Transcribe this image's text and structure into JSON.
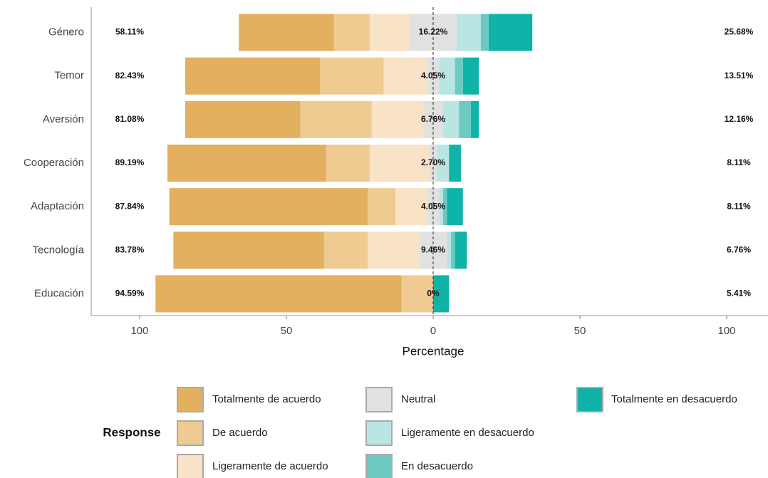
{
  "chart_data": {
    "type": "diverging_bar",
    "categories": [
      "Género",
      "Temor",
      "Aversión",
      "Cooperación",
      "Adaptación",
      "Tecnología",
      "Educación"
    ],
    "series": [
      {
        "name": "Totalmente de acuerdo",
        "color": "#e3b060",
        "side": "left",
        "values": [
          32.43,
          45.95,
          39.19,
          54.05,
          67.57,
          51.35,
          83.78
        ]
      },
      {
        "name": "De acuerdo",
        "color": "#efcb92",
        "side": "left",
        "values": [
          12.16,
          21.62,
          24.32,
          14.86,
          9.46,
          14.86,
          10.81
        ]
      },
      {
        "name": "Ligeramente de acuerdo",
        "color": "#f9e3c6",
        "side": "left",
        "values": [
          13.51,
          14.86,
          17.57,
          20.27,
          10.81,
          17.57,
          0
        ]
      },
      {
        "name": "Neutral",
        "color": "#e1e1e1",
        "side": "center",
        "values": [
          16.22,
          4.05,
          6.76,
          2.7,
          4.05,
          9.46,
          0
        ]
      },
      {
        "name": "Ligeramente en desacuerdo",
        "color": "#b9e5e2",
        "side": "right",
        "values": [
          8.11,
          5.41,
          5.41,
          4.05,
          1.35,
          1.35,
          0
        ]
      },
      {
        "name": "En desacuerdo",
        "color": "#6ccac3",
        "side": "right",
        "values": [
          2.7,
          2.7,
          4.05,
          0,
          1.35,
          1.35,
          0
        ]
      },
      {
        "name": "Totalmente en desacuerdo",
        "color": "#10b3a8",
        "side": "right",
        "values": [
          14.86,
          5.41,
          2.7,
          4.05,
          5.41,
          4.05,
          5.41
        ]
      }
    ],
    "left_labels": [
      "58.11%",
      "82.43%",
      "81.08%",
      "89.19%",
      "87.84%",
      "83.78%",
      "94.59%"
    ],
    "neutral_labels": [
      "16.22%",
      "4.05%",
      "6.76%",
      "2.70%",
      "4.05%",
      "9.46%",
      "0%"
    ],
    "right_labels": [
      "25.68%",
      "13.51%",
      "12.16%",
      "8.11%",
      "8.11%",
      "6.76%",
      "5.41%"
    ],
    "xlabel": "Percentage",
    "xlim": [
      -116.5,
      116.5
    ],
    "xticks": [
      {
        "value": -100,
        "label": "100"
      },
      {
        "value": -50,
        "label": "50"
      },
      0,
      50,
      100
    ],
    "legend_title": "Response"
  }
}
